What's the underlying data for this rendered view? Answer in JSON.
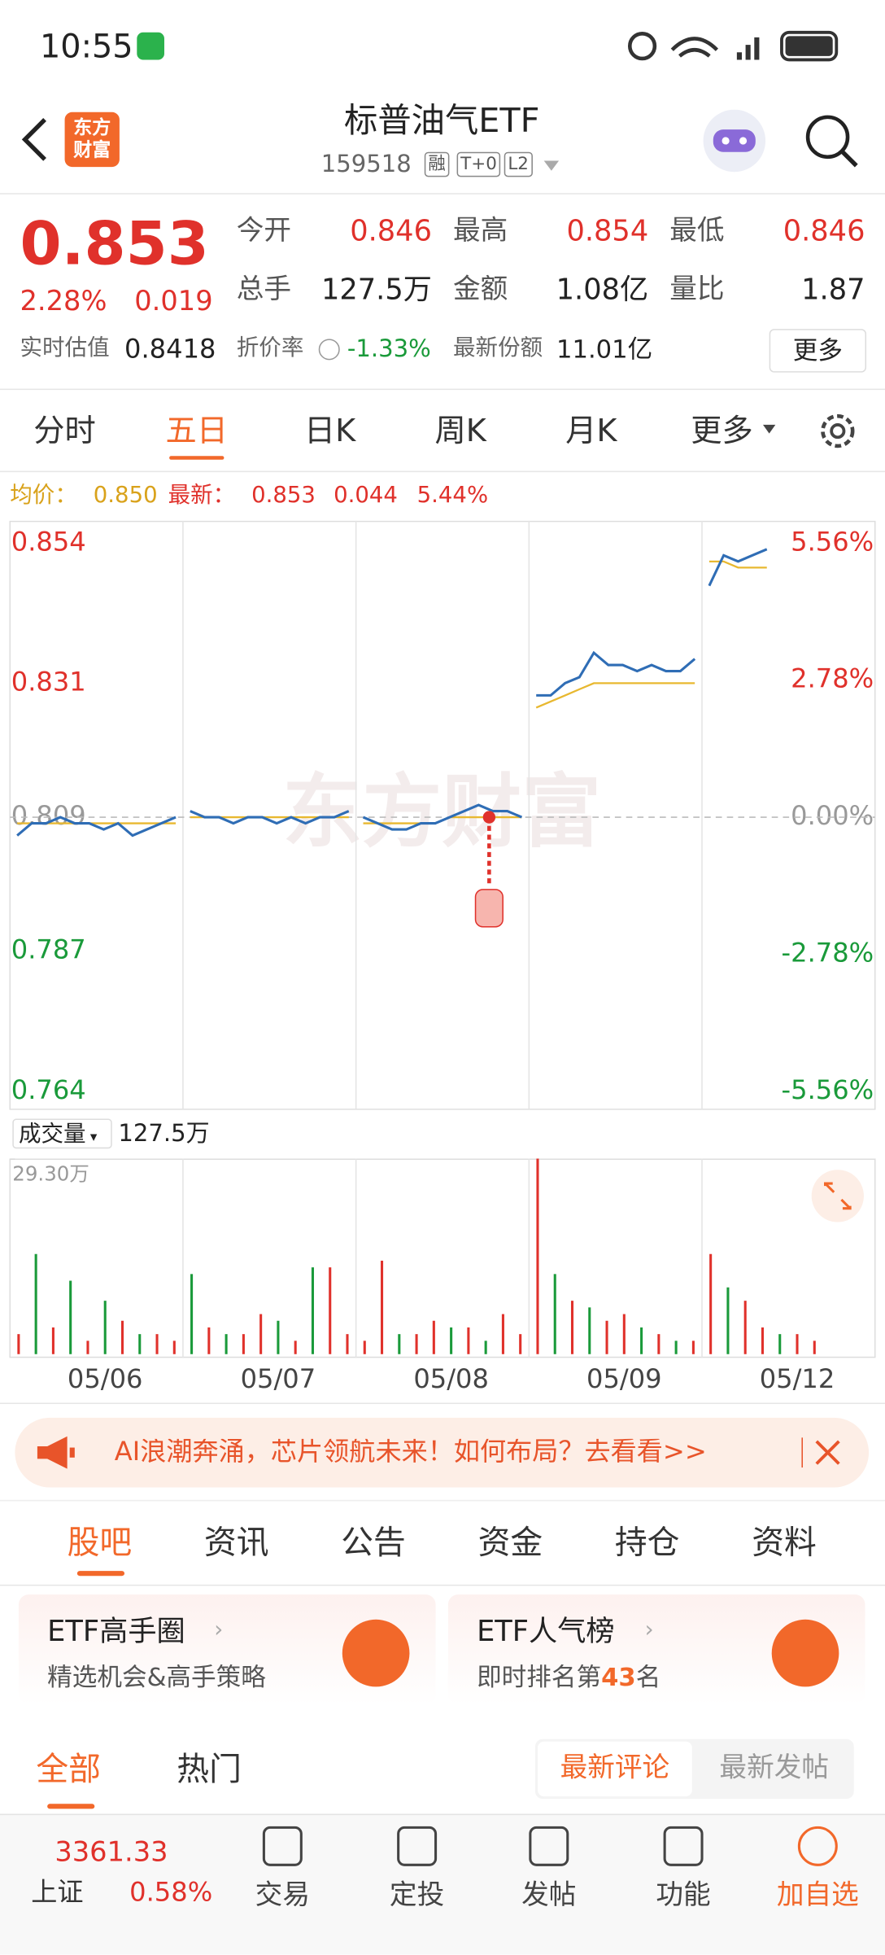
{
  "status_bar": {
    "time": "10:55"
  },
  "header": {
    "title": "标普油气ETF",
    "code": "159518",
    "badges": [
      "融",
      "T+0",
      "L2"
    ],
    "logo": [
      "东方",
      "财富"
    ]
  },
  "quote": {
    "price": "0.853",
    "change_pct": "2.28%",
    "change": "0.019",
    "fields": [
      {
        "label": "今开",
        "value": "0.846"
      },
      {
        "label": "最高",
        "value": "0.854"
      },
      {
        "label": "最低",
        "value": "0.846"
      },
      {
        "label": "总手",
        "value": "127.5万"
      },
      {
        "label": "金额",
        "value": "1.08亿"
      },
      {
        "label": "量比",
        "value": "1.87"
      }
    ],
    "estimate_label": "实时估值",
    "estimate": "0.8418",
    "discount_label": "折价率",
    "discount": "-1.33%",
    "shares_label": "最新份额",
    "shares": "11.01亿",
    "more": "更多"
  },
  "chart_tabs": [
    "分时",
    "五日",
    "日K",
    "周K",
    "月K",
    "更多"
  ],
  "info_line": {
    "avg_label": "均价：",
    "avg": "0.850",
    "last_label": "最新：",
    "last": "0.853",
    "change": "0.044",
    "change_pct": "5.44%"
  },
  "watermark": "东方财富",
  "volume_header": {
    "label": "成交量",
    "value": "127.5万"
  },
  "chart_data": [
    {
      "type": "line",
      "ylim": [
        0.764,
        0.854
      ],
      "yticks": [
        0.854,
        0.831,
        0.809,
        0.787,
        0.764
      ],
      "y2lim": [
        -5.56,
        5.56
      ],
      "y2ticks": [
        {
          "value": 5.56,
          "label": "5.56%"
        },
        {
          "value": 2.78,
          "label": "2.78%"
        },
        {
          "value": 0,
          "label": "0.00%"
        },
        {
          "value": -2.78,
          "label": "-2.78%"
        },
        {
          "value": -5.56,
          "label": "-5.56%"
        }
      ],
      "series": [
        {
          "color": "#2f6db5",
          "values": [
            [
              0.806,
              0.808,
              0.808,
              0.809,
              0.808,
              0.808,
              0.807,
              0.808,
              0.806,
              0.807,
              0.808,
              0.809
            ],
            [
              0.81,
              0.809,
              0.809,
              0.808,
              0.809,
              0.809,
              0.808,
              0.809,
              0.808,
              0.809,
              0.809,
              0.81
            ],
            [
              0.809,
              0.808,
              0.807,
              0.807,
              0.808,
              0.808,
              0.809,
              0.81,
              0.811,
              0.81,
              0.81,
              0.809
            ],
            [
              0.829,
              0.829,
              0.831,
              0.832,
              0.836,
              0.834,
              0.834,
              0.833,
              0.834,
              0.833,
              0.833,
              0.835
            ],
            [
              0.847,
              0.852,
              0.851,
              0.852,
              0.853,
              null,
              null,
              null,
              null,
              null,
              null,
              null
            ]
          ]
        },
        {
          "color": "#e8b830",
          "values": [
            [
              0.808,
              0.808,
              0.808,
              0.808,
              0.808,
              0.808,
              0.808,
              0.808,
              0.808,
              0.808,
              0.808,
              0.808
            ],
            [
              0.809,
              0.809,
              0.809,
              0.809,
              0.809,
              0.809,
              0.809,
              0.809,
              0.809,
              0.809,
              0.809,
              0.809
            ],
            [
              0.808,
              0.808,
              0.808,
              0.808,
              0.808,
              0.808,
              0.809,
              0.809,
              0.809,
              0.809,
              0.809,
              0.809
            ],
            [
              0.827,
              0.828,
              0.829,
              0.83,
              0.831,
              0.831,
              0.831,
              0.831,
              0.831,
              0.831,
              0.831,
              0.831
            ],
            [
              0.851,
              0.851,
              0.85,
              0.85,
              0.85,
              null,
              null,
              null,
              null,
              null,
              null,
              null
            ]
          ]
        }
      ]
    },
    {
      "type": "bar",
      "categories": [
        "05/06",
        "05/07",
        "05/08",
        "05/09",
        "05/12"
      ],
      "ylim": [
        0,
        29.3
      ],
      "yticks": [
        {
          "value": 29.3,
          "label": "29.30万"
        }
      ],
      "series": [
        {
          "color": "#e0312b",
          "values": [
            [
              3,
              null,
              4,
              null,
              2,
              null,
              5,
              null,
              3,
              2
            ],
            [
              null,
              4,
              null,
              3,
              6,
              null,
              2,
              null,
              13,
              3
            ],
            [
              2,
              14,
              null,
              3,
              5,
              null,
              4,
              null,
              6,
              3
            ],
            [
              29.3,
              null,
              8,
              null,
              5,
              6,
              null,
              3,
              null,
              2
            ],
            [
              15,
              null,
              8,
              4,
              null,
              3,
              2,
              null,
              null,
              null
            ]
          ]
        },
        {
          "color": "#1a9a3a",
          "values": [
            [
              null,
              15,
              null,
              11,
              null,
              8,
              null,
              3,
              null,
              null
            ],
            [
              12,
              null,
              3,
              null,
              null,
              5,
              null,
              13,
              null,
              null
            ],
            [
              null,
              null,
              3,
              null,
              null,
              4,
              null,
              2,
              null,
              null
            ],
            [
              null,
              12,
              null,
              7,
              null,
              null,
              4,
              null,
              2,
              null
            ],
            [
              null,
              10,
              null,
              null,
              3,
              null,
              null,
              null,
              null,
              null
            ]
          ]
        }
      ]
    }
  ],
  "banner": {
    "text": "AI浪潮奔涌，芯片领航未来！如何布局？去看看>>"
  },
  "section_tabs": [
    "股吧",
    "资讯",
    "公告",
    "资金",
    "持仓",
    "资料"
  ],
  "cards": [
    {
      "title": "ETF高手圈",
      "subtitle": "精选机会&高手策略"
    },
    {
      "title": "ETF人气榜",
      "subtitle_pre": "即时排名第",
      "rank": "43",
      "subtitle_post": "名"
    }
  ],
  "post_tabs": [
    "全部",
    "热门"
  ],
  "sort_tabs": [
    "最新评论",
    "最新发帖"
  ],
  "bottom_nav": {
    "index_value": "3361.33",
    "index_name": "上证",
    "index_change": "0.58%",
    "items": [
      "交易",
      "定投",
      "发帖",
      "功能",
      "加自选"
    ]
  }
}
